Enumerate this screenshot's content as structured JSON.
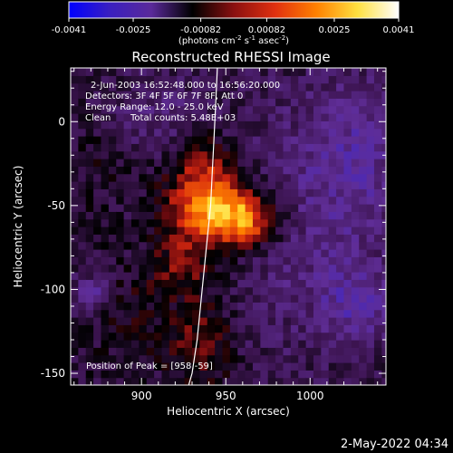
{
  "colorbar": {
    "tick_labels": [
      "-0.0041",
      "-0.0025",
      "-0.00082",
      "0.00082",
      "0.0025",
      "0.0041"
    ],
    "tick_values": [
      -0.0041,
      -0.0025,
      -0.00082,
      0.00082,
      0.0025,
      0.0041
    ],
    "range": [
      -0.0041,
      0.0041
    ],
    "unit_prefix": "(photons cm",
    "unit_exp1": "-2",
    "unit_s": " s",
    "unit_exp2": "-1",
    "unit_asec": " asec",
    "unit_exp3": "-2",
    "unit_suffix": ")",
    "colors": [
      "#0000ff",
      "#3a1fc0",
      "#5a2a9a",
      "#000000",
      "#8a1010",
      "#e03010",
      "#ff8000",
      "#ffe040",
      "#ffffff"
    ]
  },
  "chart_data": {
    "type": "heatmap",
    "title": "Reconstructed RHESSI Image",
    "xlabel": "Heliocentric X (arcsec)",
    "ylabel": "Heliocentric Y (arcsec)",
    "xlim": [
      858,
      1045
    ],
    "ylim": [
      -157,
      32
    ],
    "xticks": [
      900,
      950,
      1000
    ],
    "yticks": [
      0,
      -50,
      -100,
      -150
    ],
    "xtick_labels": [
      "900",
      "950",
      "1000"
    ],
    "ytick_labels": [
      "0",
      "-50",
      "-100",
      "-150"
    ],
    "annotations": {
      "time_range": "2-Jun-2003 16:52:48.000 to 16:56:20.000",
      "detectors": "Detectors: 3F 4F 5F 6F 7F 8F, Att 0",
      "energy": "Energy Range: 12.0 - 25.0 keV",
      "clean": "Clean",
      "counts": "Total counts: 5.48E+03",
      "peak": "Position of Peak = [958,-59]"
    },
    "peak": {
      "x": 958,
      "y": -59,
      "value": 0.0041
    },
    "sources": [
      {
        "x": 958,
        "y": -57,
        "sx": 16,
        "sy": 13,
        "amp": 0.0042
      },
      {
        "x": 938,
        "y": -32,
        "sx": 14,
        "sy": 16,
        "amp": 0.0022
      },
      {
        "x": 928,
        "y": -55,
        "sx": 12,
        "sy": 12,
        "amp": 0.0018
      },
      {
        "x": 925,
        "y": -85,
        "sx": 14,
        "sy": 12,
        "amp": 0.0015
      },
      {
        "x": 935,
        "y": -130,
        "sx": 14,
        "sy": 20,
        "amp": 0.0014
      },
      {
        "x": 890,
        "y": -115,
        "sx": 16,
        "sy": 18,
        "amp": 0.0006
      },
      {
        "x": 875,
        "y": -20,
        "sx": 14,
        "sy": 22,
        "amp": 0.0004
      },
      {
        "x": 1000,
        "y": -60,
        "sx": 40,
        "sy": 60,
        "amp": -0.0011
      },
      {
        "x": 1030,
        "y": -15,
        "sx": 20,
        "sy": 30,
        "amp": -0.001
      },
      {
        "x": 905,
        "y": 5,
        "sx": 22,
        "sy": 18,
        "amp": -0.0009
      },
      {
        "x": 1028,
        "y": -108,
        "sx": 14,
        "sy": 14,
        "amp": -0.0014
      },
      {
        "x": 870,
        "y": -103,
        "sx": 8,
        "sy": 8,
        "amp": -0.0018
      }
    ],
    "limb_curve": {
      "x": [
        945,
        944,
        943,
        942,
        941,
        939,
        937,
        935,
        933,
        930,
        928
      ],
      "y": [
        32,
        10,
        -10,
        -30,
        -50,
        -70,
        -90,
        -110,
        -130,
        -150,
        -157
      ]
    }
  },
  "footer": {
    "date": "2-May-2022 04:34"
  }
}
